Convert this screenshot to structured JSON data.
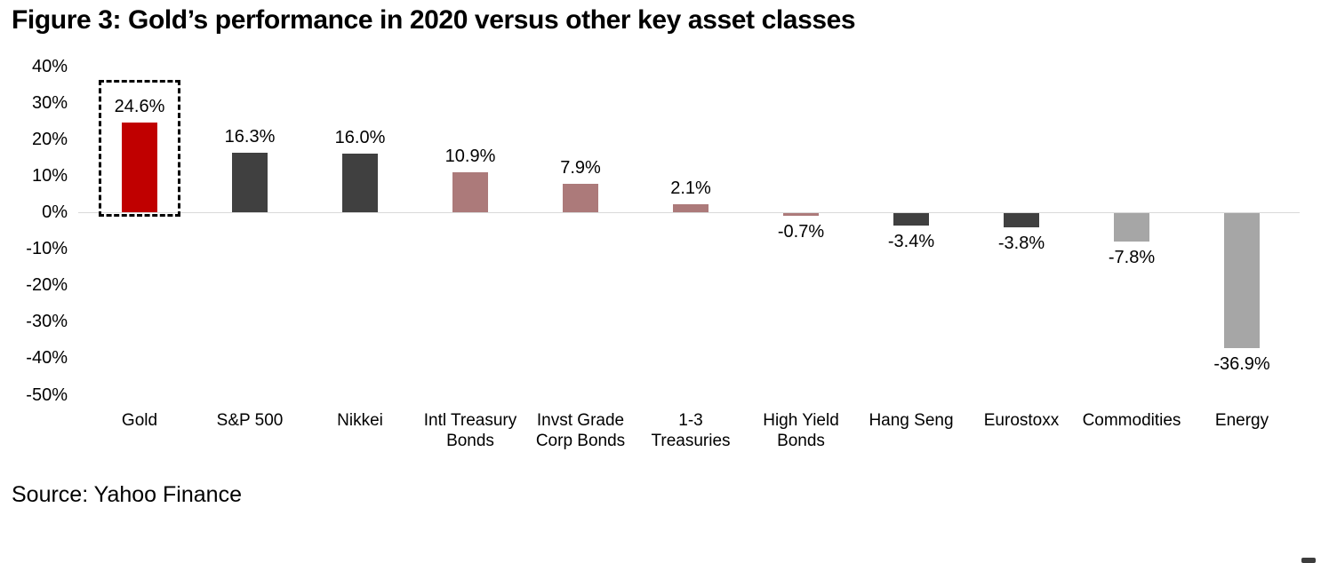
{
  "source": "Source: Yahoo Finance",
  "chart_data": {
    "type": "bar",
    "title": "Figure 3: Gold’s performance in 2020 versus other key asset classes",
    "categories": [
      "Gold",
      "S&P 500",
      "Nikkei",
      "Intl Treasury\nBonds",
      "Invst Grade\nCorp Bonds",
      "1-3\nTreasuries",
      "High Yield\nBonds",
      "Hang Seng",
      "Eurostoxx",
      "Commodities",
      "Energy"
    ],
    "values": [
      24.6,
      16.3,
      16.0,
      10.9,
      7.9,
      2.1,
      -0.7,
      -3.4,
      -3.8,
      -7.8,
      -36.9
    ],
    "labels": [
      "24.6%",
      "16.3%",
      "16.0%",
      "10.9%",
      "7.9%",
      "2.1%",
      "-0.7%",
      "-3.4%",
      "-3.8%",
      "-7.8%",
      "-36.9%"
    ],
    "bar_colors": [
      "#c00000",
      "#404040",
      "#404040",
      "#ac7a7a",
      "#ac7a7a",
      "#ac7a7a",
      "#ac7a7a",
      "#404040",
      "#404040",
      "#a6a6a6",
      "#a6a6a6"
    ],
    "xlabel": "",
    "ylabel": "",
    "ylim": [
      -50,
      40
    ],
    "ytick_step": 10,
    "ytick_labels": [
      "40%",
      "30%",
      "20%",
      "10%",
      "0%",
      "-10%",
      "-20%",
      "-30%",
      "-40%",
      "-50%"
    ],
    "grid": false,
    "legend": "none",
    "zero_line_color": "#d9d9d9",
    "highlight": {
      "category": "Gold",
      "index": 0,
      "style": "dashed-black-box",
      "color": "#000000"
    }
  }
}
